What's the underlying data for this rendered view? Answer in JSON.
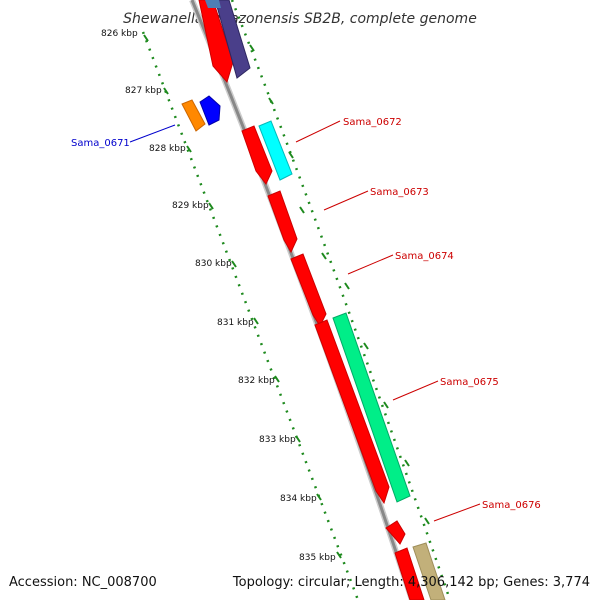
{
  "title": "Shewanella amazonensis SB2B, complete genome",
  "footer": {
    "accession": "Accession: NC_008700",
    "topology": "Topology: circular; Length: 4,306,142 bp; Genes: 3,774"
  },
  "ruler": {
    "ticks": [
      "826 kbp",
      "827 kbp",
      "828 kbp",
      "829 kbp",
      "830 kbp",
      "831 kbp",
      "832 kbp",
      "833 kbp",
      "834 kbp",
      "835 kbp"
    ]
  },
  "genes": [
    {
      "label": "Sama_0671",
      "color": "#0000cc"
    },
    {
      "label": "Sama_0672",
      "color": "#cc0000"
    },
    {
      "label": "Sama_0673",
      "color": "#cc0000"
    },
    {
      "label": "Sama_0674",
      "color": "#cc0000"
    },
    {
      "label": "Sama_0675",
      "color": "#cc0000"
    },
    {
      "label": "Sama_0676",
      "color": "#cc0000"
    }
  ],
  "colors": {
    "backbone": "#888888",
    "tick_track": "#1e8a1e",
    "red": "#ff0000",
    "cyan": "#00ffff",
    "mint": "#00ee88",
    "orange": "#ff8800",
    "blue": "#0000ff",
    "navy": "#4a3f8a",
    "steel": "#4e7fb5",
    "khaki": "#c2b07a"
  }
}
